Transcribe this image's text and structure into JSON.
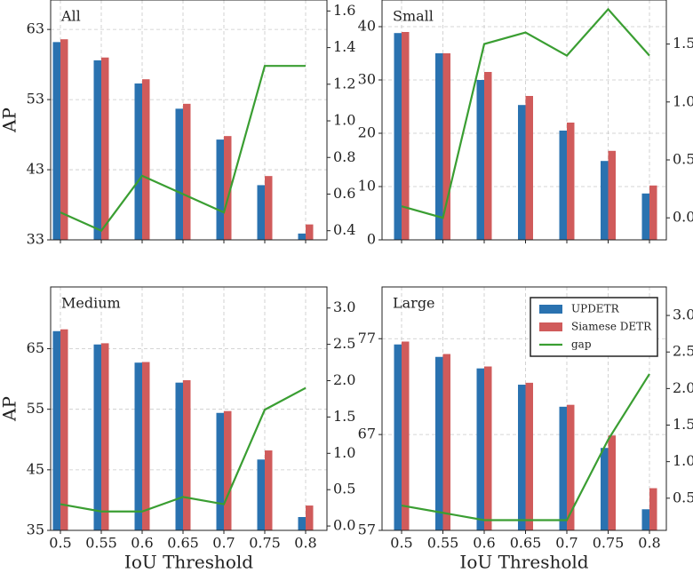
{
  "chart_data": [
    {
      "type": "bar",
      "title": "All",
      "ylabel": "AP",
      "categories": [
        "0.5",
        "0.55",
        "0.6",
        "0.65",
        "0.7",
        "0.75",
        "0.8"
      ],
      "xticklabels": false,
      "series": [
        {
          "name": "UPDETR",
          "color": "#2a72b0",
          "values": [
            61.2,
            58.6,
            55.3,
            51.7,
            47.3,
            40.8,
            33.9
          ]
        },
        {
          "name": "Siamese DETR",
          "color": "#d05b5b",
          "values": [
            61.6,
            59.0,
            55.9,
            52.4,
            47.8,
            42.1,
            35.2
          ]
        },
        {
          "name": "gap",
          "color": "#3a9e32",
          "type": "line",
          "axis": "y2",
          "values": [
            0.5,
            0.4,
            0.7,
            0.6,
            0.5,
            1.3,
            1.3
          ]
        }
      ],
      "ylim": [
        33,
        67.2
      ],
      "yticks": [
        33,
        43,
        53,
        63
      ],
      "y2lim": [
        0.35,
        1.66
      ],
      "y2ticks": [
        0.4,
        0.6,
        0.8,
        {
          "value": 1,
          "label": "1.0"
        },
        1.2,
        1.4,
        1.6
      ],
      "grid": true
    },
    {
      "type": "bar",
      "title": "Small",
      "categories": [
        "0.5",
        "0.55",
        "0.6",
        "0.65",
        "0.7",
        "0.75",
        "0.8"
      ],
      "xticklabels": false,
      "series": [
        {
          "name": "UPDETR",
          "color": "#2a72b0",
          "values": [
            38.8,
            35.0,
            30.0,
            25.3,
            20.5,
            14.8,
            8.7
          ]
        },
        {
          "name": "Siamese DETR",
          "color": "#d05b5b",
          "values": [
            39.0,
            35.0,
            31.5,
            27.0,
            22.0,
            16.7,
            10.2
          ]
        },
        {
          "name": "gap",
          "color": "#3a9e32",
          "type": "line",
          "axis": "y2",
          "values": [
            0.1,
            0.0,
            1.5,
            1.6,
            1.4,
            1.8,
            1.4
          ]
        }
      ],
      "ylim": [
        0,
        45
      ],
      "yticks": [
        0,
        10,
        20,
        30,
        40
      ],
      "y2lim": [
        -0.19,
        1.88
      ],
      "y2ticks": [
        {
          "value": 0,
          "label": "0.0"
        },
        0.5,
        {
          "value": 1,
          "label": "1.0"
        },
        1.5
      ],
      "grid": true
    },
    {
      "type": "bar",
      "title": "Medium",
      "ylabel": "AP",
      "xlabel": "IoU Threshold",
      "categories": [
        "0.5",
        "0.55",
        "0.6",
        "0.65",
        "0.7",
        "0.75",
        "0.8"
      ],
      "xticklabels": true,
      "series": [
        {
          "name": "UPDETR",
          "color": "#2a72b0",
          "values": [
            67.9,
            65.7,
            62.7,
            59.4,
            54.4,
            46.7,
            37.2
          ]
        },
        {
          "name": "Siamese DETR",
          "color": "#d05b5b",
          "values": [
            68.2,
            65.9,
            62.8,
            59.8,
            54.7,
            48.2,
            39.1
          ]
        },
        {
          "name": "gap",
          "color": "#3a9e32",
          "type": "line",
          "axis": "y2",
          "values": [
            0.3,
            0.2,
            0.2,
            0.4,
            0.3,
            1.6,
            1.9
          ]
        }
      ],
      "ylim": [
        35,
        75.2
      ],
      "yticks": [
        35,
        45,
        55,
        65
      ],
      "y2lim": [
        -0.06,
        3.29
      ],
      "y2ticks": [
        {
          "value": 0,
          "label": "0.0"
        },
        0.5,
        {
          "value": 1,
          "label": "1.0"
        },
        1.5,
        {
          "value": 2,
          "label": "2.0"
        },
        2.5,
        {
          "value": 3,
          "label": "3.0"
        }
      ],
      "grid": true
    },
    {
      "type": "bar",
      "title": "Large",
      "xlabel": "IoU Threshold",
      "categories": [
        "0.5",
        "0.55",
        "0.6",
        "0.65",
        "0.7",
        "0.75",
        "0.8"
      ],
      "xticklabels": true,
      "series": [
        {
          "name": "UPDETR",
          "color": "#2a72b0",
          "values": [
            76.4,
            75.1,
            73.9,
            72.2,
            69.9,
            65.6,
            59.2
          ]
        },
        {
          "name": "Siamese DETR",
          "color": "#d05b5b",
          "values": [
            76.7,
            75.4,
            74.1,
            72.4,
            70.1,
            66.9,
            61.4
          ]
        },
        {
          "name": "gap",
          "color": "#3a9e32",
          "type": "line",
          "axis": "y2",
          "values": [
            0.4,
            0.3,
            0.2,
            0.2,
            0.2,
            1.3,
            2.2
          ]
        }
      ],
      "ylim": [
        57,
        82.4
      ],
      "yticks": [
        57,
        67,
        77
      ],
      "y2lim": [
        0.06,
        3.39
      ],
      "y2ticks": [
        0.5,
        {
          "value": 1,
          "label": "1.0"
        },
        1.5,
        {
          "value": 2,
          "label": "2.0"
        },
        2.5,
        {
          "value": 3,
          "label": "3.0"
        }
      ],
      "grid": true,
      "legend": "upper right"
    }
  ]
}
